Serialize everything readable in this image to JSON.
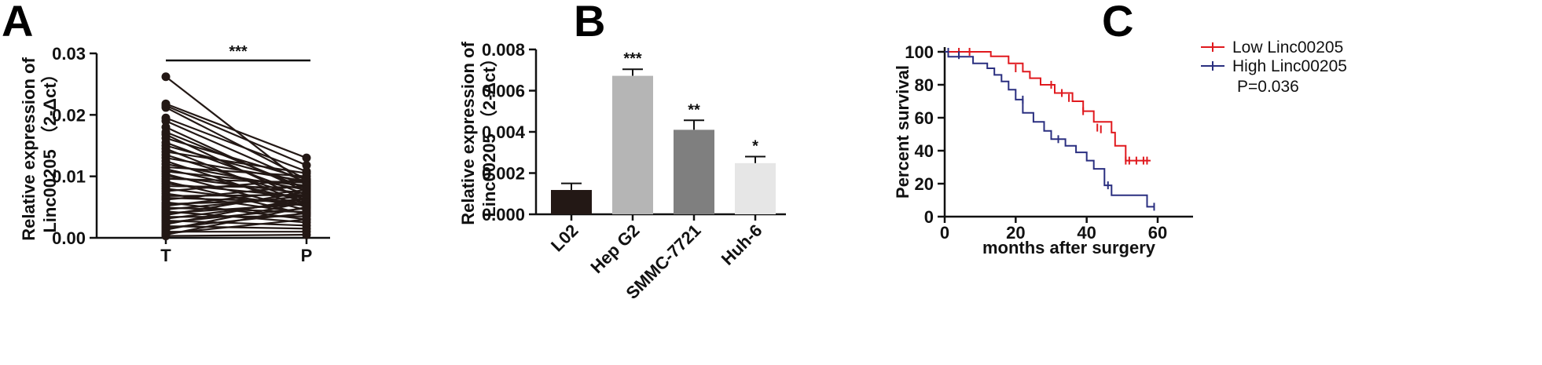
{
  "chart_data": [
    {
      "type": "line",
      "panel": "A",
      "ylabel_line1": "Relative expression of",
      "ylabel_line2": "Linc00205",
      "ylabel_formula": "（2-Δct）",
      "categories": [
        "T",
        "P"
      ],
      "ylim": [
        0,
        0.03
      ],
      "yticks": [
        "0.00",
        "0.01",
        "0.02",
        "0.03"
      ],
      "significance": "***",
      "pairs": [
        [
          0.0262,
          0.0085
        ],
        [
          0.0218,
          0.013
        ],
        [
          0.0215,
          0.0118
        ],
        [
          0.0212,
          0.0095
        ],
        [
          0.0195,
          0.0108
        ],
        [
          0.019,
          0.009
        ],
        [
          0.018,
          0.0075
        ],
        [
          0.0172,
          0.008
        ],
        [
          0.0168,
          0.006
        ],
        [
          0.0162,
          0.0095
        ],
        [
          0.0155,
          0.007
        ],
        [
          0.015,
          0.0088
        ],
        [
          0.0145,
          0.0055
        ],
        [
          0.014,
          0.0105
        ],
        [
          0.0135,
          0.0065
        ],
        [
          0.013,
          0.0092
        ],
        [
          0.0125,
          0.005
        ],
        [
          0.012,
          0.0078
        ],
        [
          0.0115,
          0.01
        ],
        [
          0.0112,
          0.006
        ],
        [
          0.0108,
          0.0085
        ],
        [
          0.0104,
          0.0045
        ],
        [
          0.01,
          0.0072
        ],
        [
          0.0096,
          0.009
        ],
        [
          0.0092,
          0.0038
        ],
        [
          0.0088,
          0.0066
        ],
        [
          0.0084,
          0.0082
        ],
        [
          0.008,
          0.0052
        ],
        [
          0.0076,
          0.0095
        ],
        [
          0.0072,
          0.004
        ],
        [
          0.0068,
          0.007
        ],
        [
          0.0065,
          0.0058
        ],
        [
          0.0062,
          0.0085
        ],
        [
          0.0058,
          0.003
        ],
        [
          0.0055,
          0.0062
        ],
        [
          0.0052,
          0.0078
        ],
        [
          0.0049,
          0.0042
        ],
        [
          0.0046,
          0.0068
        ],
        [
          0.0043,
          0.0025
        ],
        [
          0.004,
          0.0055
        ],
        [
          0.0037,
          0.0075
        ],
        [
          0.0034,
          0.0035
        ],
        [
          0.0031,
          0.006
        ],
        [
          0.0028,
          0.002
        ],
        [
          0.0025,
          0.0048
        ],
        [
          0.0022,
          0.0065
        ],
        [
          0.0019,
          0.0015
        ],
        [
          0.0016,
          0.004
        ],
        [
          0.0013,
          0.0058
        ],
        [
          0.001,
          0.001
        ],
        [
          0.0007,
          0.003
        ],
        [
          0.0005,
          0.005
        ],
        [
          0.0003,
          0.0005
        ]
      ]
    },
    {
      "type": "bar",
      "panel": "B",
      "ylabel_line1": "Relative expression of",
      "ylabel_line2": "Linc00205",
      "ylabel_formula": "（2-Δct）",
      "categories": [
        "L02",
        "Hep G2",
        "SMMC-7721",
        "Huh-6"
      ],
      "values": [
        0.00118,
        0.00672,
        0.0041,
        0.00248
      ],
      "errors": [
        0.00032,
        0.00032,
        0.00046,
        0.00032
      ],
      "significance": [
        "",
        "***",
        "**",
        "*"
      ],
      "colors": [
        "#231815",
        "#b5b5b5",
        "#7f7f7f",
        "#e6e6e6"
      ],
      "ylim": [
        0,
        0.008
      ],
      "yticks": [
        "0.000",
        "0.002",
        "0.004",
        "0.006",
        "0.008"
      ]
    },
    {
      "type": "line",
      "panel": "C",
      "xlabel": "months after surgery",
      "ylabel": "Percent survival",
      "xlim": [
        0,
        70
      ],
      "ylim": [
        0,
        100
      ],
      "xticks": [
        "0",
        "20",
        "40",
        "60"
      ],
      "yticks": [
        "0",
        "20",
        "40",
        "60",
        "80",
        "100"
      ],
      "legend_position": "top-right",
      "annotation": "P=0.036",
      "series": [
        {
          "name": "Low Linc00205",
          "color": "#e0191e",
          "steps": [
            [
              0,
              100
            ],
            [
              13,
              100
            ],
            [
              13,
              97.3
            ],
            [
              18,
              97.3
            ],
            [
              18,
              93
            ],
            [
              22,
              93
            ],
            [
              22,
              88
            ],
            [
              24,
              88
            ],
            [
              24,
              84
            ],
            [
              27,
              84
            ],
            [
              27,
              80
            ],
            [
              31,
              80
            ],
            [
              31,
              75
            ],
            [
              36,
              75
            ],
            [
              36,
              70
            ],
            [
              39,
              70
            ],
            [
              39,
              64
            ],
            [
              42,
              64
            ],
            [
              42,
              57.5
            ],
            [
              47,
              57.5
            ],
            [
              47,
              51
            ],
            [
              48,
              51
            ],
            [
              48,
              43
            ],
            [
              51,
              43
            ],
            [
              51,
              34
            ],
            [
              58,
              34
            ]
          ],
          "censored": [
            [
              4,
              100
            ],
            [
              7,
              100
            ],
            [
              20,
              90
            ],
            [
              30,
              80
            ],
            [
              33,
              75
            ],
            [
              35,
              72
            ],
            [
              39,
              64
            ],
            [
              43,
              54
            ],
            [
              44,
              53
            ],
            [
              51,
              34
            ],
            [
              52,
              34
            ],
            [
              54,
              34
            ],
            [
              56,
              34
            ],
            [
              57,
              34
            ]
          ]
        },
        {
          "name": "High Linc00205",
          "color": "#2a2f80",
          "steps": [
            [
              0,
              100
            ],
            [
              1,
              100
            ],
            [
              1,
              97
            ],
            [
              8,
              97
            ],
            [
              8,
              93
            ],
            [
              12,
              93
            ],
            [
              12,
              90
            ],
            [
              14,
              90
            ],
            [
              14,
              86
            ],
            [
              16,
              86
            ],
            [
              16,
              82
            ],
            [
              18,
              82
            ],
            [
              18,
              77
            ],
            [
              20,
              77
            ],
            [
              20,
              71
            ],
            [
              22,
              71
            ],
            [
              22,
              63
            ],
            [
              25,
              63
            ],
            [
              25,
              57.5
            ],
            [
              28,
              57.5
            ],
            [
              28,
              52
            ],
            [
              30,
              52
            ],
            [
              30,
              47
            ],
            [
              34,
              47
            ],
            [
              34,
              43
            ],
            [
              37,
              43
            ],
            [
              37,
              39
            ],
            [
              40,
              39
            ],
            [
              40,
              34
            ],
            [
              42,
              34
            ],
            [
              42,
              29
            ],
            [
              45,
              29
            ],
            [
              45,
              19
            ],
            [
              47,
              19
            ],
            [
              47,
              13
            ],
            [
              57,
              13
            ],
            [
              57,
              6
            ],
            [
              59,
              6
            ]
          ],
          "censored": [
            [
              1,
              100
            ],
            [
              4,
              98
            ],
            [
              22,
              71
            ],
            [
              32,
              47
            ],
            [
              46,
              19
            ],
            [
              59,
              6
            ]
          ]
        }
      ]
    }
  ]
}
